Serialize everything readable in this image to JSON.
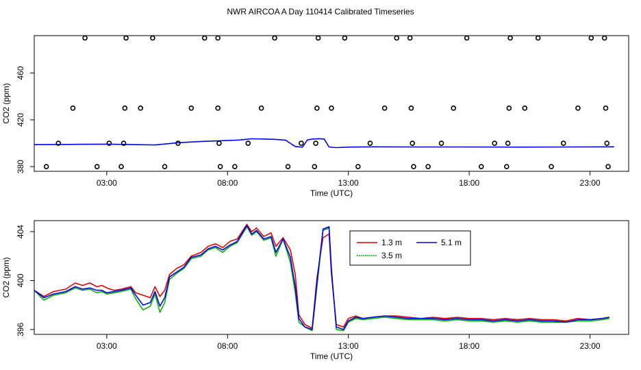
{
  "title": "NWR AIRCOA A  Day 110414  Calibrated Timeseries",
  "colors": {
    "red": "#e00000",
    "green": "#00b400",
    "blue": "#0000ee",
    "axis": "#000000"
  },
  "chart_data": [
    {
      "type": "scatter",
      "name": "raw-co2",
      "title": "",
      "xlabel": "Time (UTC)",
      "ylabel": "CO2 (ppm)",
      "xlim": [
        0,
        24.6
      ],
      "ylim": [
        376,
        492
      ],
      "x_ticks": [
        3,
        8,
        13,
        18,
        23
      ],
      "x_tick_labels": [
        "03:00",
        "08:00",
        "13:00",
        "18:00",
        "23:00"
      ],
      "y_ticks": [
        380,
        420,
        460
      ],
      "y_tick_labels": [
        "380",
        "420",
        "460"
      ],
      "points": [
        {
          "x": 0.5,
          "y": 380
        },
        {
          "x": 1.0,
          "y": 400
        },
        {
          "x": 1.6,
          "y": 430
        },
        {
          "x": 2.1,
          "y": 490
        },
        {
          "x": 2.6,
          "y": 380
        },
        {
          "x": 3.1,
          "y": 400
        },
        {
          "x": 3.6,
          "y": 380
        },
        {
          "x": 3.7,
          "y": 400
        },
        {
          "x": 3.75,
          "y": 430
        },
        {
          "x": 3.8,
          "y": 490
        },
        {
          "x": 4.4,
          "y": 430
        },
        {
          "x": 4.9,
          "y": 490
        },
        {
          "x": 5.4,
          "y": 380
        },
        {
          "x": 5.95,
          "y": 400
        },
        {
          "x": 6.5,
          "y": 430
        },
        {
          "x": 7.05,
          "y": 490
        },
        {
          "x": 7.6,
          "y": 490
        },
        {
          "x": 7.6,
          "y": 430
        },
        {
          "x": 7.65,
          "y": 400
        },
        {
          "x": 7.7,
          "y": 380
        },
        {
          "x": 8.3,
          "y": 380
        },
        {
          "x": 8.85,
          "y": 400
        },
        {
          "x": 9.4,
          "y": 430
        },
        {
          "x": 9.95,
          "y": 490
        },
        {
          "x": 10.5,
          "y": 380
        },
        {
          "x": 11.05,
          "y": 400
        },
        {
          "x": 11.6,
          "y": 380
        },
        {
          "x": 11.65,
          "y": 400
        },
        {
          "x": 11.7,
          "y": 430
        },
        {
          "x": 11.75,
          "y": 490
        },
        {
          "x": 12.3,
          "y": 430
        },
        {
          "x": 12.85,
          "y": 490
        },
        {
          "x": 13.4,
          "y": 380
        },
        {
          "x": 13.9,
          "y": 400
        },
        {
          "x": 14.5,
          "y": 430
        },
        {
          "x": 15.0,
          "y": 490
        },
        {
          "x": 15.55,
          "y": 490
        },
        {
          "x": 15.6,
          "y": 430
        },
        {
          "x": 15.65,
          "y": 400
        },
        {
          "x": 15.7,
          "y": 380
        },
        {
          "x": 16.3,
          "y": 380
        },
        {
          "x": 16.85,
          "y": 400
        },
        {
          "x": 17.35,
          "y": 430
        },
        {
          "x": 17.9,
          "y": 490
        },
        {
          "x": 18.5,
          "y": 380
        },
        {
          "x": 19.05,
          "y": 400
        },
        {
          "x": 19.55,
          "y": 380
        },
        {
          "x": 19.6,
          "y": 400
        },
        {
          "x": 19.65,
          "y": 430
        },
        {
          "x": 19.7,
          "y": 490
        },
        {
          "x": 20.3,
          "y": 430
        },
        {
          "x": 20.85,
          "y": 490
        },
        {
          "x": 21.4,
          "y": 380
        },
        {
          "x": 21.9,
          "y": 400
        },
        {
          "x": 22.5,
          "y": 430
        },
        {
          "x": 23.05,
          "y": 490
        },
        {
          "x": 23.6,
          "y": 490
        },
        {
          "x": 23.65,
          "y": 430
        },
        {
          "x": 23.7,
          "y": 400
        },
        {
          "x": 23.75,
          "y": 380
        }
      ],
      "series": [
        {
          "name": "5.1 m",
          "color": "#0000ee",
          "x": [
            0,
            1,
            2,
            3,
            4,
            5,
            6,
            7,
            8,
            8.5,
            9,
            10,
            10.4,
            10.8,
            11.1,
            11.3,
            11.5,
            11.8,
            12.0,
            12.2,
            12.5,
            13,
            14,
            16,
            18,
            20,
            22,
            24
          ],
          "values": [
            398.8,
            398.9,
            399.1,
            399.2,
            398.9,
            398.5,
            400.5,
            401.6,
            402.3,
            402.8,
            403.8,
            403.3,
            402.6,
            397.2,
            396.6,
            402.8,
            403.6,
            403.9,
            403.6,
            396.8,
            396.2,
            396.7,
            396.9,
            396.8,
            396.8,
            396.7,
            396.8,
            396.9
          ]
        }
      ]
    },
    {
      "type": "line",
      "name": "calibrated-co2",
      "title": "",
      "xlabel": "Time (UTC)",
      "ylabel": "CO2 (ppm)",
      "xlim": [
        0,
        24.6
      ],
      "ylim": [
        395.6,
        404.9
      ],
      "x_ticks": [
        3,
        8,
        13,
        18,
        23
      ],
      "x_tick_labels": [
        "03:00",
        "08:00",
        "13:00",
        "18:00",
        "23:00"
      ],
      "y_ticks": [
        396,
        400,
        404
      ],
      "y_tick_labels": [
        "396",
        "400",
        "404"
      ],
      "legend": {
        "position": "top-right",
        "entries": [
          "1.3 m",
          "5.1 m",
          "3.5 m"
        ]
      },
      "series": [
        {
          "name": "1.3 m",
          "color": "#e00000",
          "x": [
            0,
            0.4,
            0.8,
            1.3,
            1.7,
            2.0,
            2.3,
            2.6,
            2.8,
            3.0,
            3.3,
            3.6,
            4.0,
            4.2,
            4.5,
            4.8,
            5.0,
            5.2,
            5.4,
            5.6,
            5.9,
            6.2,
            6.5,
            6.9,
            7.2,
            7.5,
            7.8,
            8.1,
            8.4,
            8.8,
            9.0,
            9.2,
            9.5,
            9.8,
            10.0,
            10.3,
            10.6,
            10.8,
            10.95,
            11.2,
            11.5,
            11.7,
            11.95,
            12.2,
            12.3,
            12.5,
            12.8,
            13.0,
            13.3,
            13.6,
            14.0,
            14.5,
            15.0,
            15.5,
            16.0,
            16.5,
            17.0,
            17.5,
            18.0,
            18.5,
            19.0,
            19.5,
            20.0,
            20.5,
            21.0,
            21.5,
            22.0,
            22.5,
            23.0,
            23.5,
            23.8
          ],
          "values": [
            399.2,
            398.7,
            399.1,
            399.3,
            399.8,
            399.6,
            399.8,
            399.5,
            399.6,
            399.4,
            399.2,
            399.3,
            399.5,
            399.0,
            398.8,
            398.6,
            399.5,
            398.7,
            399.2,
            400.5,
            401.0,
            401.3,
            402.0,
            402.3,
            402.8,
            403.0,
            402.7,
            403.2,
            403.4,
            404.6,
            404.0,
            404.3,
            403.6,
            403.9,
            402.8,
            403.5,
            402.5,
            400.5,
            397.2,
            396.4,
            396.1,
            400.2,
            403.5,
            403.8,
            400.5,
            396.4,
            396.2,
            396.9,
            397.1,
            396.9,
            397.0,
            397.1,
            397.1,
            397.0,
            396.9,
            397.0,
            396.9,
            397.0,
            396.9,
            396.9,
            396.8,
            396.9,
            396.8,
            396.9,
            396.8,
            396.8,
            396.7,
            396.9,
            396.8,
            396.9,
            397.0
          ]
        },
        {
          "name": "3.5 m",
          "color": "#00b400",
          "x": [
            0,
            0.4,
            0.8,
            1.3,
            1.7,
            2.0,
            2.3,
            2.6,
            2.8,
            3.0,
            3.3,
            3.6,
            4.0,
            4.2,
            4.5,
            4.8,
            5.0,
            5.2,
            5.4,
            5.6,
            5.9,
            6.2,
            6.5,
            6.9,
            7.2,
            7.5,
            7.8,
            8.1,
            8.4,
            8.8,
            9.0,
            9.2,
            9.5,
            9.8,
            10.0,
            10.3,
            10.6,
            10.8,
            10.95,
            11.2,
            11.5,
            11.7,
            11.95,
            12.2,
            12.3,
            12.5,
            12.8,
            13.0,
            13.3,
            13.6,
            14.0,
            14.5,
            15.0,
            15.5,
            16.0,
            16.5,
            17.0,
            17.5,
            18.0,
            18.5,
            19.0,
            19.5,
            20.0,
            20.5,
            21.0,
            21.5,
            22.0,
            22.5,
            23.0,
            23.5,
            23.8
          ],
          "values": [
            399.2,
            398.4,
            398.8,
            399.0,
            399.4,
            399.2,
            399.3,
            399.0,
            399.1,
            398.9,
            399.0,
            399.1,
            399.3,
            398.5,
            397.6,
            397.9,
            398.9,
            397.4,
            398.2,
            400.1,
            400.6,
            401.0,
            401.8,
            402.0,
            402.5,
            402.7,
            402.3,
            402.8,
            403.1,
            404.4,
            403.7,
            404.0,
            403.3,
            403.5,
            402.0,
            403.4,
            401.5,
            399.0,
            396.6,
            396.2,
            395.9,
            399.5,
            404.1,
            404.3,
            401.0,
            396.0,
            395.9,
            396.6,
            396.9,
            396.8,
            396.9,
            397.0,
            396.9,
            396.8,
            396.8,
            396.8,
            396.7,
            396.8,
            396.7,
            396.7,
            396.6,
            396.7,
            396.6,
            396.7,
            396.6,
            396.6,
            396.6,
            396.7,
            396.7,
            396.8,
            396.9
          ]
        },
        {
          "name": "5.1 m",
          "color": "#0000ee",
          "x": [
            0,
            0.4,
            0.8,
            1.3,
            1.7,
            2.0,
            2.3,
            2.6,
            2.8,
            3.0,
            3.3,
            3.6,
            4.0,
            4.2,
            4.5,
            4.8,
            5.0,
            5.2,
            5.4,
            5.6,
            5.9,
            6.2,
            6.5,
            6.9,
            7.2,
            7.5,
            7.8,
            8.1,
            8.4,
            8.8,
            9.0,
            9.2,
            9.5,
            9.8,
            10.0,
            10.3,
            10.6,
            10.8,
            10.95,
            11.2,
            11.5,
            11.7,
            11.95,
            12.2,
            12.3,
            12.5,
            12.8,
            13.0,
            13.3,
            13.6,
            14.0,
            14.5,
            15.0,
            15.5,
            16.0,
            16.5,
            17.0,
            17.5,
            18.0,
            18.5,
            19.0,
            19.5,
            20.0,
            20.5,
            21.0,
            21.5,
            22.0,
            22.5,
            23.0,
            23.5,
            23.8
          ],
          "values": [
            399.2,
            398.6,
            398.9,
            399.1,
            399.5,
            399.3,
            399.4,
            399.2,
            399.2,
            399.0,
            399.1,
            399.2,
            399.4,
            398.8,
            398.0,
            398.2,
            399.1,
            397.9,
            398.6,
            400.3,
            400.7,
            401.1,
            401.9,
            402.1,
            402.6,
            402.8,
            402.5,
            402.9,
            403.2,
            404.5,
            403.8,
            404.1,
            403.4,
            403.6,
            402.3,
            403.4,
            401.9,
            399.5,
            396.9,
            396.2,
            396.0,
            399.8,
            404.2,
            404.4,
            400.8,
            396.2,
            396.0,
            396.7,
            397.0,
            396.9,
            397.0,
            397.1,
            397.0,
            396.9,
            396.9,
            396.9,
            396.8,
            396.9,
            396.8,
            396.8,
            396.7,
            396.8,
            396.7,
            396.8,
            396.7,
            396.7,
            396.6,
            396.8,
            396.8,
            396.9,
            397.0
          ]
        }
      ]
    }
  ]
}
